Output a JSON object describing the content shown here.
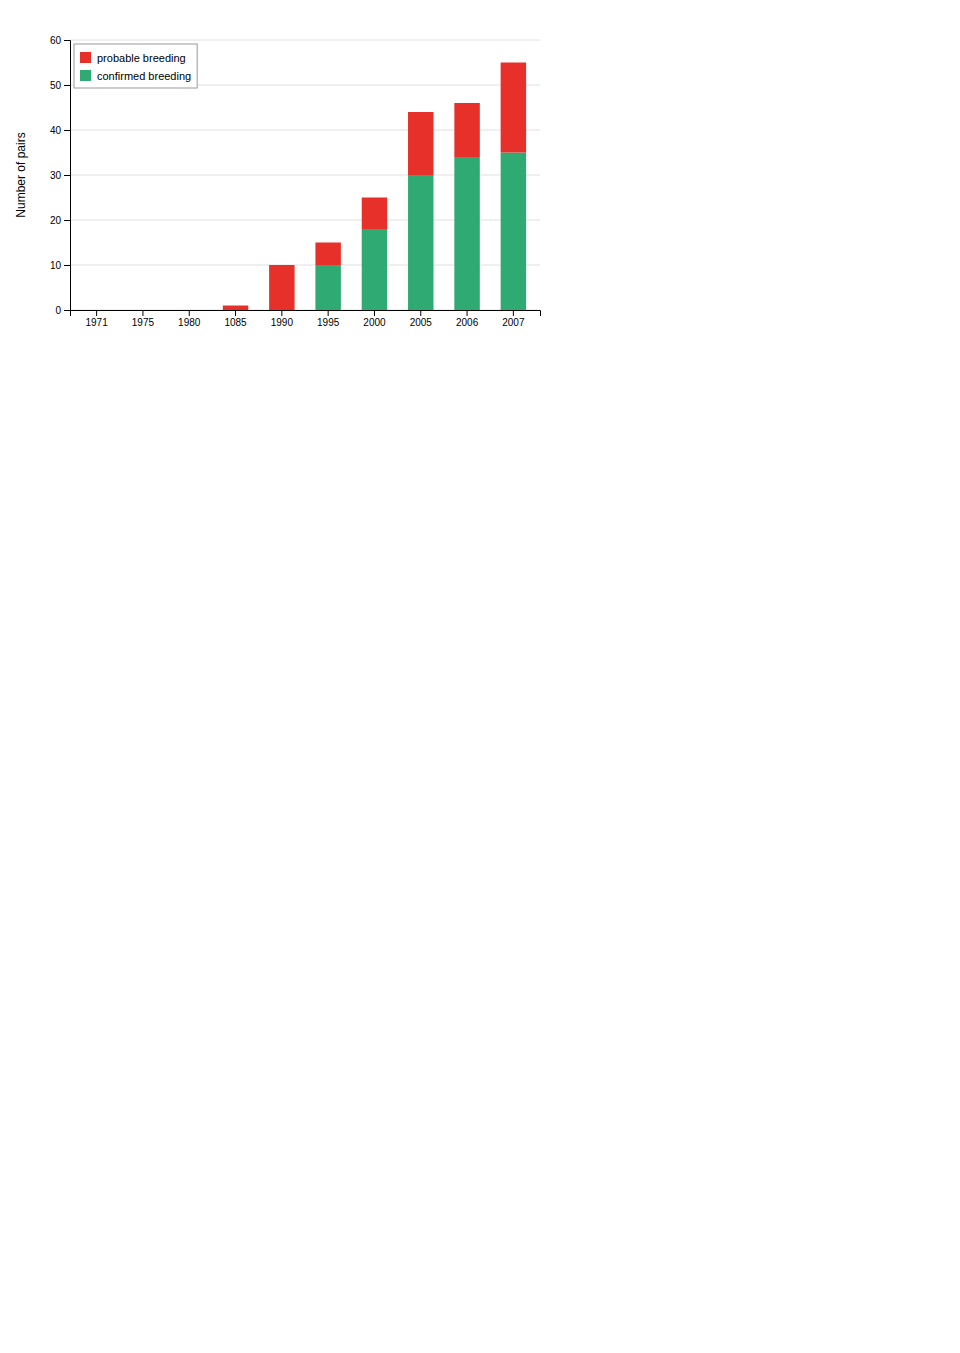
{
  "chart_data": {
    "type": "bar",
    "stacked": true,
    "categories": [
      "1971",
      "1975",
      "1980",
      "1085",
      "1990",
      "1995",
      "2000",
      "2005",
      "2006",
      "2007"
    ],
    "series": [
      {
        "name": "confirmed breeding",
        "color": "#2EAA72",
        "values": [
          0,
          0,
          0,
          0,
          0,
          10,
          18,
          30,
          34,
          35
        ]
      },
      {
        "name": "probable breeding",
        "color": "#E8302A",
        "values": [
          0,
          0,
          0,
          1,
          10,
          5,
          7,
          14,
          12,
          20
        ]
      }
    ],
    "ylabel": "Number of pairs",
    "ylim": [
      0,
      60
    ],
    "yticks": [
      0,
      10,
      20,
      30,
      40,
      50,
      60
    ],
    "grid": true,
    "legend": "upper left"
  }
}
